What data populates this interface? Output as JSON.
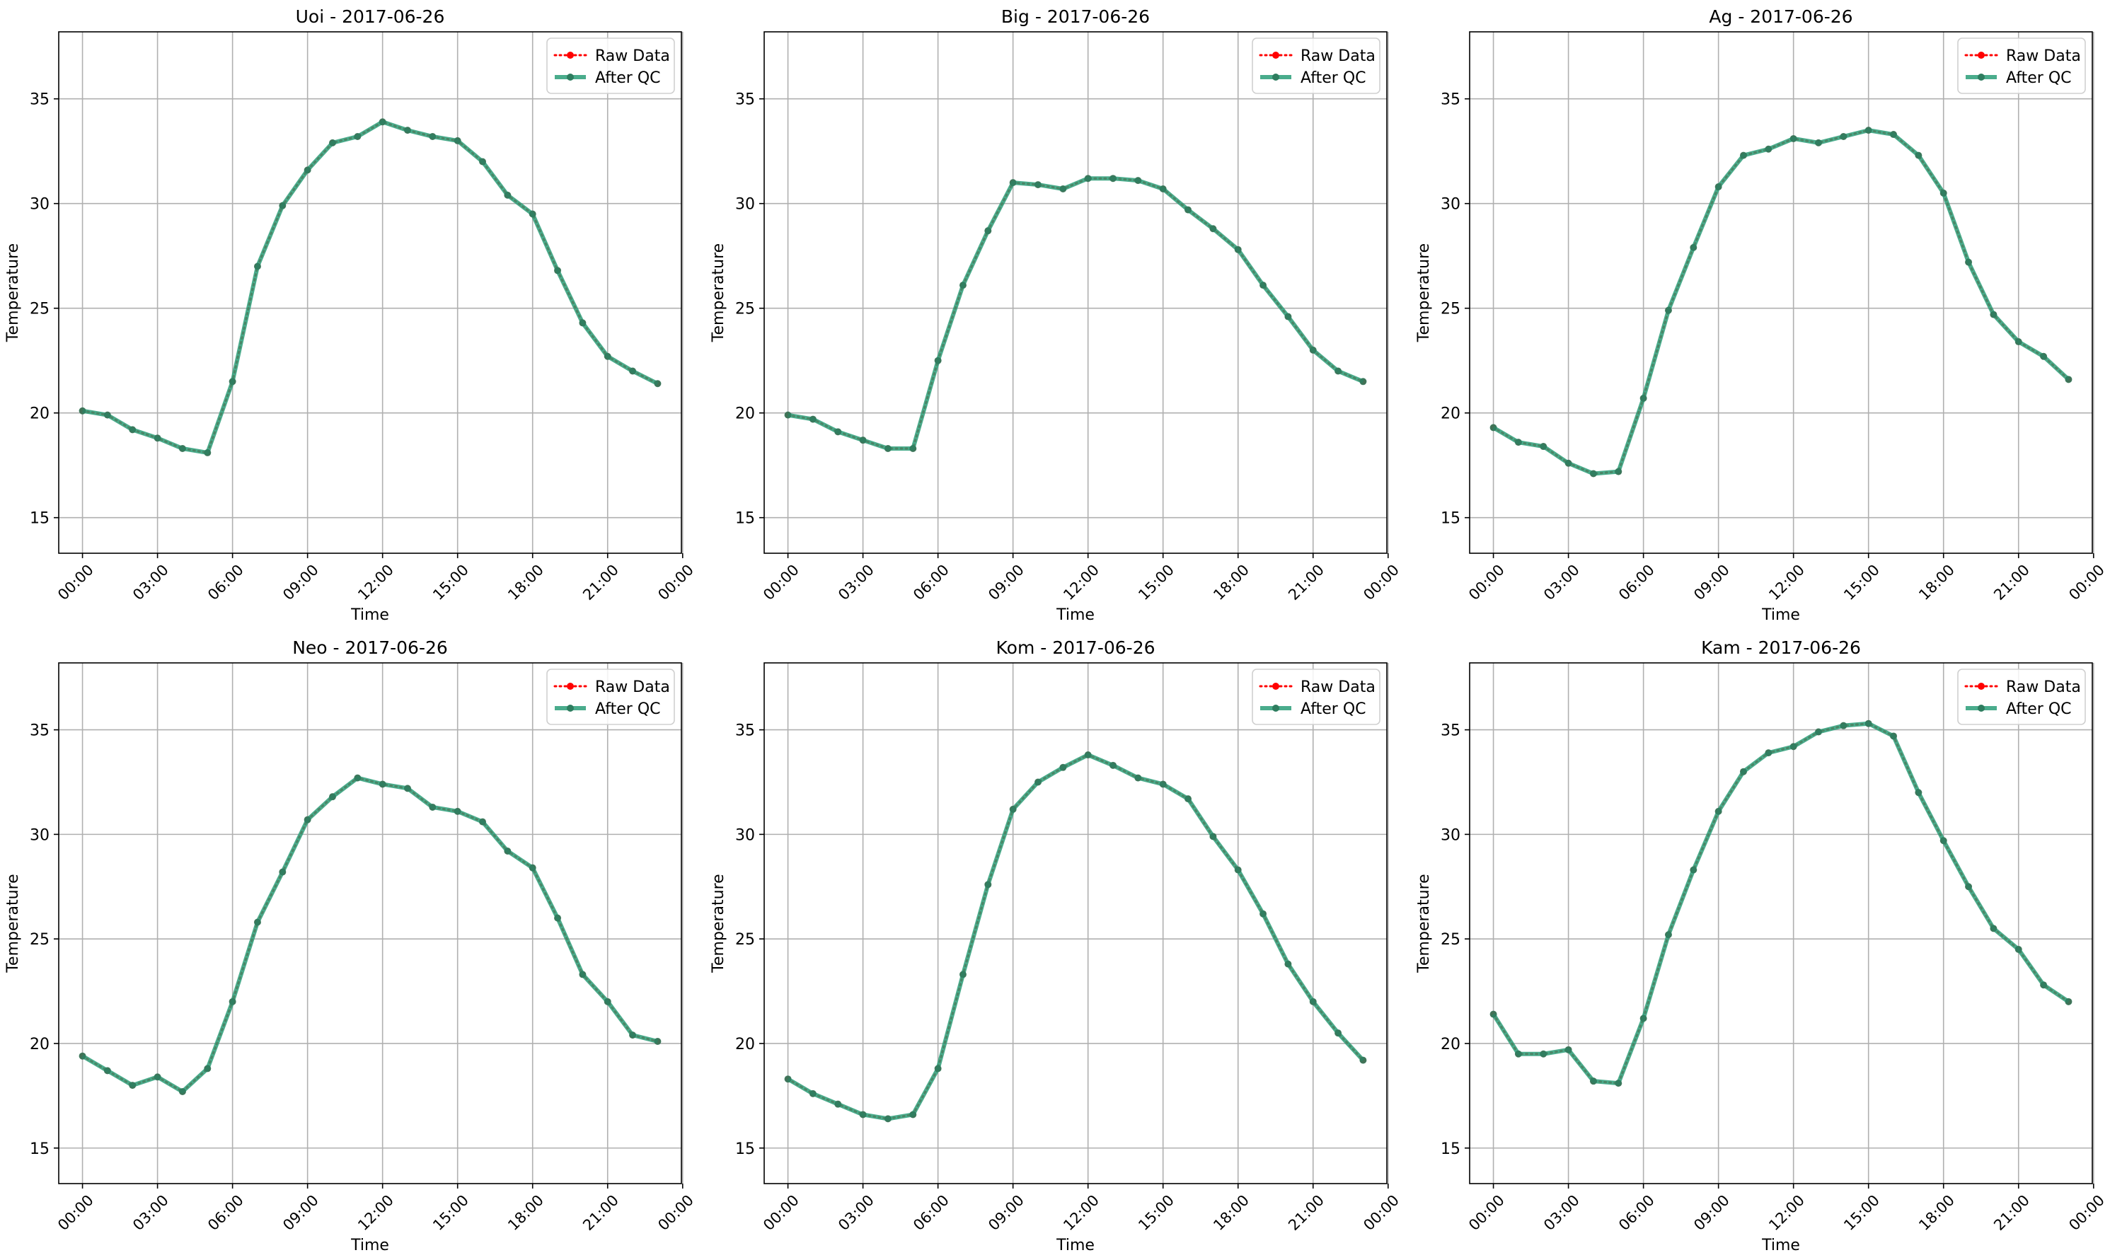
{
  "figure": {
    "background": "#ffffff",
    "grid_color": "#b0b0b0"
  },
  "colors": {
    "raw": "#ff0000",
    "qc": "#2a9d78",
    "qc_marker": "#2e7d5f"
  },
  "chart_data": [
    {
      "type": "line",
      "title": "Uoi - 2017-06-26",
      "xlabel": "Time",
      "ylabel": "Temperature",
      "xlim": [
        -0.95,
        23.95
      ],
      "ylim": [
        13.3,
        38.2
      ],
      "x_ticks": [
        0,
        3,
        6,
        9,
        12,
        15,
        18,
        21,
        24
      ],
      "x_tick_labels": [
        "00:00",
        "03:00",
        "06:00",
        "09:00",
        "12:00",
        "15:00",
        "18:00",
        "21:00",
        "00:00"
      ],
      "y_ticks": [
        15,
        20,
        25,
        30,
        35
      ],
      "y_tick_labels": [
        "15",
        "20",
        "25",
        "30",
        "35"
      ],
      "grid": true,
      "legend": {
        "position": "top-right",
        "entries": [
          "Raw Data",
          "After QC"
        ]
      },
      "x": [
        0,
        1,
        2,
        3,
        4,
        5,
        6,
        7,
        8,
        9,
        10,
        11,
        12,
        13,
        14,
        15,
        16,
        17,
        18,
        19,
        20,
        21,
        22,
        23
      ],
      "series": [
        {
          "name": "Raw Data",
          "values": [
            20.1,
            19.9,
            19.2,
            18.8,
            18.3,
            18.1,
            21.5,
            27.0,
            29.9,
            31.6,
            32.9,
            33.2,
            33.9,
            33.5,
            33.2,
            33.0,
            32.0,
            30.4,
            29.5,
            26.8,
            24.3,
            22.7,
            22.0,
            21.4
          ]
        },
        {
          "name": "After QC",
          "values": [
            20.1,
            19.9,
            19.2,
            18.8,
            18.3,
            18.1,
            21.5,
            27.0,
            29.9,
            31.6,
            32.9,
            33.2,
            33.9,
            33.5,
            33.2,
            33.0,
            32.0,
            30.4,
            29.5,
            26.8,
            24.3,
            22.7,
            22.0,
            21.4
          ]
        }
      ]
    },
    {
      "type": "line",
      "title": "Big - 2017-06-26",
      "xlabel": "Time",
      "ylabel": "Temperature",
      "xlim": [
        -0.95,
        23.95
      ],
      "ylim": [
        13.3,
        38.2
      ],
      "x_ticks": [
        0,
        3,
        6,
        9,
        12,
        15,
        18,
        21,
        24
      ],
      "x_tick_labels": [
        "00:00",
        "03:00",
        "06:00",
        "09:00",
        "12:00",
        "15:00",
        "18:00",
        "21:00",
        "00:00"
      ],
      "y_ticks": [
        15,
        20,
        25,
        30,
        35
      ],
      "y_tick_labels": [
        "15",
        "20",
        "25",
        "30",
        "35"
      ],
      "grid": true,
      "legend": {
        "position": "top-right",
        "entries": [
          "Raw Data",
          "After QC"
        ]
      },
      "x": [
        0,
        1,
        2,
        3,
        4,
        5,
        6,
        7,
        8,
        9,
        10,
        11,
        12,
        13,
        14,
        15,
        16,
        17,
        18,
        19,
        20,
        21,
        22,
        23
      ],
      "series": [
        {
          "name": "Raw Data",
          "values": [
            19.9,
            19.7,
            19.1,
            18.7,
            18.3,
            18.3,
            22.5,
            26.1,
            28.7,
            31.0,
            30.9,
            30.7,
            31.2,
            31.2,
            31.1,
            30.7,
            29.7,
            28.8,
            27.8,
            26.1,
            24.6,
            23.0,
            22.0,
            21.5
          ]
        },
        {
          "name": "After QC",
          "values": [
            19.9,
            19.7,
            19.1,
            18.7,
            18.3,
            18.3,
            22.5,
            26.1,
            28.7,
            31.0,
            30.9,
            30.7,
            31.2,
            31.2,
            31.1,
            30.7,
            29.7,
            28.8,
            27.8,
            26.1,
            24.6,
            23.0,
            22.0,
            21.5
          ]
        }
      ]
    },
    {
      "type": "line",
      "title": "Ag - 2017-06-26",
      "xlabel": "Time",
      "ylabel": "Temperature",
      "xlim": [
        -0.95,
        23.95
      ],
      "ylim": [
        13.3,
        38.2
      ],
      "x_ticks": [
        0,
        3,
        6,
        9,
        12,
        15,
        18,
        21,
        24
      ],
      "x_tick_labels": [
        "00:00",
        "03:00",
        "06:00",
        "09:00",
        "12:00",
        "15:00",
        "18:00",
        "21:00",
        "00:00"
      ],
      "y_ticks": [
        15,
        20,
        25,
        30,
        35
      ],
      "y_tick_labels": [
        "15",
        "20",
        "25",
        "30",
        "35"
      ],
      "grid": true,
      "legend": {
        "position": "top-right",
        "entries": [
          "Raw Data",
          "After QC"
        ]
      },
      "x": [
        0,
        1,
        2,
        3,
        4,
        5,
        6,
        7,
        8,
        9,
        10,
        11,
        12,
        13,
        14,
        15,
        16,
        17,
        18,
        19,
        20,
        21,
        22,
        23
      ],
      "series": [
        {
          "name": "Raw Data",
          "values": [
            19.3,
            18.6,
            18.4,
            17.6,
            17.1,
            17.2,
            20.7,
            24.9,
            27.9,
            30.8,
            32.3,
            32.6,
            33.1,
            32.9,
            33.2,
            33.5,
            33.3,
            32.3,
            30.5,
            27.2,
            24.7,
            23.4,
            22.7,
            21.6
          ]
        },
        {
          "name": "After QC",
          "values": [
            19.3,
            18.6,
            18.4,
            17.6,
            17.1,
            17.2,
            20.7,
            24.9,
            27.9,
            30.8,
            32.3,
            32.6,
            33.1,
            32.9,
            33.2,
            33.5,
            33.3,
            32.3,
            30.5,
            27.2,
            24.7,
            23.4,
            22.7,
            21.6
          ]
        }
      ]
    },
    {
      "type": "line",
      "title": "Neo - 2017-06-26",
      "xlabel": "Time",
      "ylabel": "Temperature",
      "xlim": [
        -0.95,
        23.95
      ],
      "ylim": [
        13.3,
        38.2
      ],
      "x_ticks": [
        0,
        3,
        6,
        9,
        12,
        15,
        18,
        21,
        24
      ],
      "x_tick_labels": [
        "00:00",
        "03:00",
        "06:00",
        "09:00",
        "12:00",
        "15:00",
        "18:00",
        "21:00",
        "00:00"
      ],
      "y_ticks": [
        15,
        20,
        25,
        30,
        35
      ],
      "y_tick_labels": [
        "15",
        "20",
        "25",
        "30",
        "35"
      ],
      "grid": true,
      "legend": {
        "position": "top-right",
        "entries": [
          "Raw Data",
          "After QC"
        ]
      },
      "x": [
        0,
        1,
        2,
        3,
        4,
        5,
        6,
        7,
        8,
        9,
        10,
        11,
        12,
        13,
        14,
        15,
        16,
        17,
        18,
        19,
        20,
        21,
        22,
        23
      ],
      "series": [
        {
          "name": "Raw Data",
          "values": [
            19.4,
            18.7,
            18.0,
            18.4,
            17.7,
            18.8,
            22.0,
            25.8,
            28.2,
            30.7,
            31.8,
            32.7,
            32.4,
            32.2,
            31.3,
            31.1,
            30.6,
            29.2,
            28.4,
            26.0,
            23.3,
            22.0,
            20.4,
            20.1
          ]
        },
        {
          "name": "After QC",
          "values": [
            19.4,
            18.7,
            18.0,
            18.4,
            17.7,
            18.8,
            22.0,
            25.8,
            28.2,
            30.7,
            31.8,
            32.7,
            32.4,
            32.2,
            31.3,
            31.1,
            30.6,
            29.2,
            28.4,
            26.0,
            23.3,
            22.0,
            20.4,
            20.1
          ]
        }
      ]
    },
    {
      "type": "line",
      "title": "Kom - 2017-06-26",
      "xlabel": "Time",
      "ylabel": "Temperature",
      "xlim": [
        -0.95,
        23.95
      ],
      "ylim": [
        13.3,
        38.2
      ],
      "x_ticks": [
        0,
        3,
        6,
        9,
        12,
        15,
        18,
        21,
        24
      ],
      "x_tick_labels": [
        "00:00",
        "03:00",
        "06:00",
        "09:00",
        "12:00",
        "15:00",
        "18:00",
        "21:00",
        "00:00"
      ],
      "y_ticks": [
        15,
        20,
        25,
        30,
        35
      ],
      "y_tick_labels": [
        "15",
        "20",
        "25",
        "30",
        "35"
      ],
      "grid": true,
      "legend": {
        "position": "top-right",
        "entries": [
          "Raw Data",
          "After QC"
        ]
      },
      "x": [
        0,
        1,
        2,
        3,
        4,
        5,
        6,
        7,
        8,
        9,
        10,
        11,
        12,
        13,
        14,
        15,
        16,
        17,
        18,
        19,
        20,
        21,
        22,
        23
      ],
      "series": [
        {
          "name": "Raw Data",
          "values": [
            18.3,
            17.6,
            17.1,
            16.6,
            16.4,
            16.6,
            18.8,
            23.3,
            27.6,
            31.2,
            32.5,
            33.2,
            33.8,
            33.3,
            32.7,
            32.4,
            31.7,
            29.9,
            28.3,
            26.2,
            23.8,
            22.0,
            20.5,
            19.2
          ]
        },
        {
          "name": "After QC",
          "values": [
            18.3,
            17.6,
            17.1,
            16.6,
            16.4,
            16.6,
            18.8,
            23.3,
            27.6,
            31.2,
            32.5,
            33.2,
            33.8,
            33.3,
            32.7,
            32.4,
            31.7,
            29.9,
            28.3,
            26.2,
            23.8,
            22.0,
            20.5,
            19.2
          ]
        }
      ]
    },
    {
      "type": "line",
      "title": "Kam - 2017-06-26",
      "xlabel": "Time",
      "ylabel": "Temperature",
      "xlim": [
        -0.95,
        23.95
      ],
      "ylim": [
        13.3,
        38.2
      ],
      "x_ticks": [
        0,
        3,
        6,
        9,
        12,
        15,
        18,
        21,
        24
      ],
      "x_tick_labels": [
        "00:00",
        "03:00",
        "06:00",
        "09:00",
        "12:00",
        "15:00",
        "18:00",
        "21:00",
        "00:00"
      ],
      "y_ticks": [
        15,
        20,
        25,
        30,
        35
      ],
      "y_tick_labels": [
        "15",
        "20",
        "25",
        "30",
        "35"
      ],
      "grid": true,
      "legend": {
        "position": "top-right",
        "entries": [
          "Raw Data",
          "After QC"
        ]
      },
      "x": [
        0,
        1,
        2,
        3,
        4,
        5,
        6,
        7,
        8,
        9,
        10,
        11,
        12,
        13,
        14,
        15,
        16,
        17,
        18,
        19,
        20,
        21,
        22,
        23
      ],
      "series": [
        {
          "name": "Raw Data",
          "values": [
            21.4,
            19.5,
            19.5,
            19.7,
            18.2,
            18.1,
            21.2,
            25.2,
            28.3,
            31.1,
            33.0,
            33.9,
            34.2,
            34.9,
            35.2,
            35.3,
            34.7,
            32.0,
            29.7,
            27.5,
            25.5,
            24.5,
            22.8,
            22.0
          ]
        },
        {
          "name": "After QC",
          "values": [
            21.4,
            19.5,
            19.5,
            19.7,
            18.2,
            18.1,
            21.2,
            25.2,
            28.3,
            31.1,
            33.0,
            33.9,
            34.2,
            34.9,
            35.2,
            35.3,
            34.7,
            32.0,
            29.7,
            27.5,
            25.5,
            24.5,
            22.8,
            22.0
          ]
        }
      ]
    }
  ]
}
